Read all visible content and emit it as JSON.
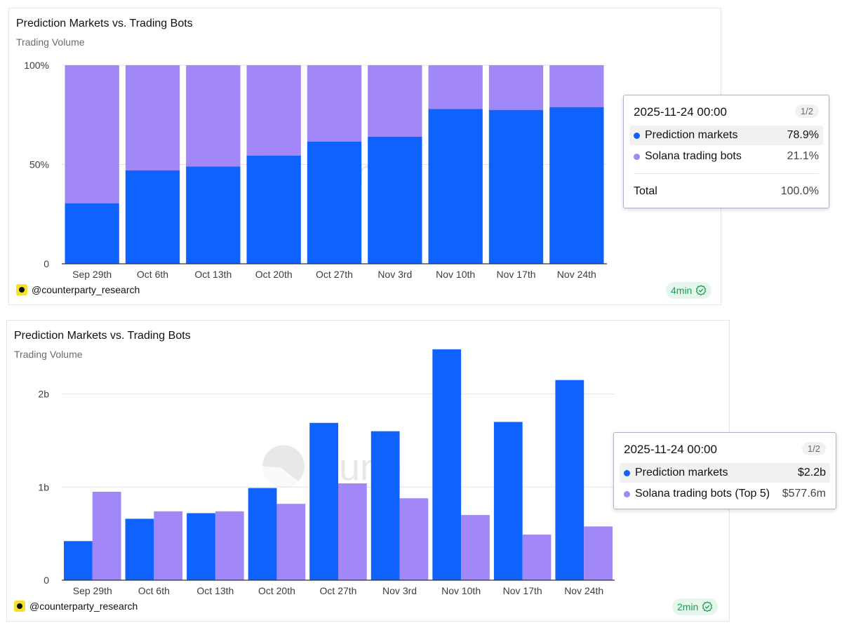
{
  "colors": {
    "prediction": "#0f62fe",
    "solana": "#a187f8",
    "accent_green": "#18a058"
  },
  "panels": [
    {
      "title": "Prediction Markets vs. Trading Bots",
      "subtitle": "Trading Volume",
      "author": "@counterparty_research",
      "updated": "4min",
      "watermark": "Dune",
      "tooltip": {
        "date": "2025-11-24 00:00",
        "page": "1/2",
        "rows": [
          {
            "label": "Prediction markets",
            "value": "78.9%"
          },
          {
            "label": "Solana trading bots",
            "value": "21.1%"
          }
        ],
        "total_label": "Total",
        "total_value": "100.0%"
      }
    },
    {
      "title": "Prediction Markets vs. Trading Bots",
      "subtitle": "Trading Volume",
      "author": "@counterparty_research",
      "updated": "2min",
      "watermark": "Dune",
      "tooltip": {
        "date": "2025-11-24 00:00",
        "page": "1/2",
        "rows": [
          {
            "label": "Prediction markets",
            "value": "$2.2b"
          },
          {
            "label": "Solana trading bots (Top 5)",
            "value": "$577.6m"
          }
        ]
      }
    }
  ],
  "chart_data": [
    {
      "type": "bar",
      "stacking": "percent",
      "title": "Prediction Markets vs. Trading Bots",
      "subtitle": "Trading Volume",
      "categories": [
        "Sep 29th",
        "Oct 6th",
        "Oct 13th",
        "Oct 20th",
        "Oct 27th",
        "Nov 3rd",
        "Nov 10th",
        "Nov 17th",
        "Nov 24th"
      ],
      "series": [
        {
          "name": "Prediction markets",
          "color": "#0f62fe",
          "values": [
            30.5,
            47,
            49,
            54.5,
            61.5,
            64,
            78,
            77.5,
            78.9
          ]
        },
        {
          "name": "Solana trading bots",
          "color": "#a187f8",
          "values": [
            69.5,
            53,
            51,
            45.5,
            38.5,
            36,
            22,
            22.5,
            21.1
          ]
        }
      ],
      "ylim": [
        0,
        100
      ],
      "yticks": [
        0,
        50,
        100
      ],
      "ytick_labels": [
        "0",
        "50%",
        "100%"
      ],
      "grid": true
    },
    {
      "type": "bar",
      "stacking": "grouped",
      "title": "Prediction Markets vs. Trading Bots",
      "subtitle": "Trading Volume",
      "categories": [
        "Sep 29th",
        "Oct 6th",
        "Oct 13th",
        "Oct 20th",
        "Oct 27th",
        "Nov 3rd",
        "Nov 10th",
        "Nov 17th",
        "Nov 24th"
      ],
      "series": [
        {
          "name": "Prediction markets",
          "color": "#0f62fe",
          "values": [
            0.42,
            0.66,
            0.72,
            0.99,
            1.69,
            1.6,
            2.48,
            1.7,
            2.15
          ]
        },
        {
          "name": "Solana trading bots (Top 5)",
          "color": "#a187f8",
          "values": [
            0.95,
            0.74,
            0.74,
            0.82,
            1.04,
            0.88,
            0.7,
            0.49,
            0.5776
          ]
        }
      ],
      "ylim": [
        0,
        2.5
      ],
      "yticks": [
        0,
        1,
        2
      ],
      "ytick_labels": [
        "0",
        "1b",
        "2b"
      ],
      "unit": "billions USD",
      "grid": true
    }
  ]
}
